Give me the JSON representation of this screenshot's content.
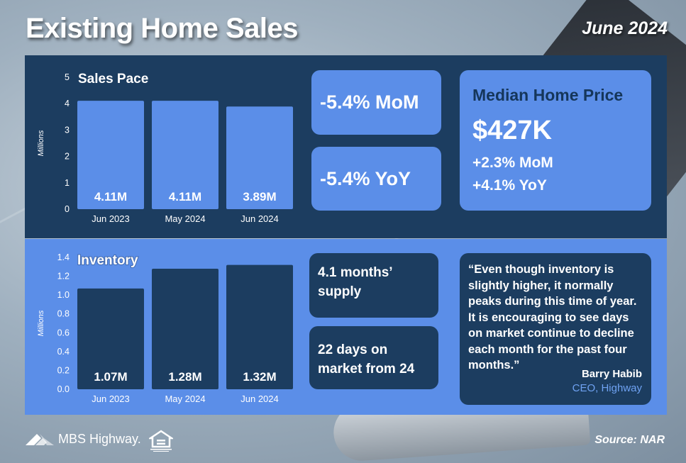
{
  "header": {
    "title": "Existing Home Sales",
    "date": "June 2024"
  },
  "chart_data": [
    {
      "type": "bar",
      "title": "Sales Pace",
      "ylabel": "Millions",
      "categories": [
        "Jun 2023",
        "May 2024",
        "Jun 2024"
      ],
      "values": [
        4.11,
        4.11,
        3.89
      ],
      "data_labels": [
        "4.11M",
        "4.11M",
        "3.89M"
      ],
      "ylim": [
        0,
        5
      ],
      "yticks": [
        "0",
        "1",
        "2",
        "3",
        "4",
        "5"
      ],
      "ytick_values": [
        0,
        1,
        2,
        3,
        4,
        5
      ],
      "bar_color": "#5b8ee8",
      "grid": false
    },
    {
      "type": "bar",
      "title": "Inventory",
      "ylabel": "Millions",
      "categories": [
        "Jun 2023",
        "May 2024",
        "Jun 2024"
      ],
      "values": [
        1.07,
        1.28,
        1.32
      ],
      "data_labels": [
        "1.07M",
        "1.28M",
        "1.32M"
      ],
      "ylim": [
        0,
        1.4
      ],
      "yticks": [
        "0.0",
        "0.2",
        "0.4",
        "0.6",
        "0.8",
        "1.0",
        "1.2",
        "1.4"
      ],
      "ytick_values": [
        0,
        0.2,
        0.4,
        0.6,
        0.8,
        1.0,
        1.2,
        1.4
      ],
      "bar_color": "#1c3d60",
      "grid": false
    }
  ],
  "stats": {
    "sales_mom": "-5.4% MoM",
    "sales_yoy": "-5.4% YoY",
    "months_supply": "4.1 months’ supply",
    "days_on_market": "22 days on market from 24"
  },
  "median": {
    "title": "Median Home Price",
    "price": "$427K",
    "mom": "+2.3% MoM",
    "yoy": "+4.1% YoY"
  },
  "quote": {
    "text": "“Even though inventory is slightly higher, it normally peaks during this time of year. It is encouraging to see days on market continue to decline each month for the past four months.”",
    "author": "Barry Habib",
    "role": "CEO, Highway"
  },
  "footer": {
    "logo_text": "MBS Highway.",
    "source": "Source: NAR"
  },
  "colors": {
    "dark_navy": "#1c3d60",
    "accent_blue": "#5b8ee8",
    "role_blue": "#6fa2f2"
  }
}
